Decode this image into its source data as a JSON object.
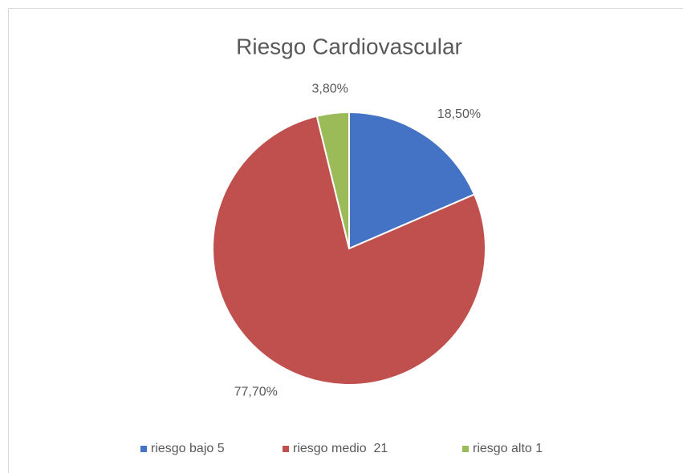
{
  "chart_data": {
    "type": "pie",
    "title": "Riesgo Cardiovascular",
    "categories": [
      "riesgo bajo 5",
      "riesgo medio  21",
      "riesgo alto 1"
    ],
    "values": [
      18.5,
      77.7,
      3.8
    ],
    "value_labels": [
      "18,50%",
      "77,70%",
      "3,80%"
    ],
    "colors": [
      "#4472c4",
      "#c0504d",
      "#9bbb59"
    ],
    "legend": "bottom"
  }
}
